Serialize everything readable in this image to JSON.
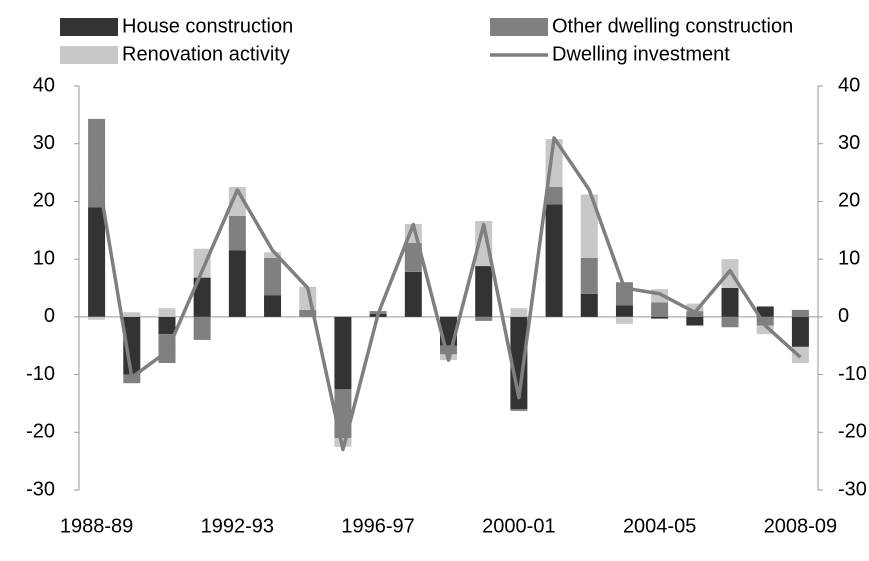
{
  "chart_data": {
    "type": "bar",
    "stacked": true,
    "categories": [
      "1988-89",
      null,
      null,
      null,
      "1992-93",
      null,
      null,
      null,
      "1996-97",
      null,
      null,
      null,
      "2000-01",
      null,
      null,
      null,
      "2004-05",
      null,
      null,
      null,
      "2008-09"
    ],
    "series": [
      {
        "name": "House construction",
        "color": "#333333",
        "values": [
          19,
          -10,
          -3,
          6.8,
          11.5,
          3.7,
          0,
          -12.5,
          0.5,
          7.8,
          -5,
          8.8,
          -16,
          19.5,
          4,
          2,
          -0.3,
          -1.5,
          5,
          1.8,
          -5.2
        ]
      },
      {
        "name": "Other dwelling construction",
        "color": "#808080",
        "values": [
          15.3,
          -1.5,
          -5,
          -4,
          6,
          6.5,
          1.2,
          -8.5,
          0.5,
          5,
          -1.5,
          -0.7,
          -0.3,
          3,
          6.2,
          4,
          2.5,
          1,
          -1.8,
          -1.5,
          1.2
        ]
      },
      {
        "name": "Renovation activity",
        "color": "#c8c8c8",
        "values": [
          -0.5,
          0.8,
          1.5,
          5,
          5,
          1,
          4,
          -1.5,
          0,
          3.3,
          -1,
          7.8,
          1.5,
          8.3,
          11,
          -1.2,
          2.3,
          1.3,
          5,
          -1.5,
          -2.8
        ]
      },
      {
        "name": "Dwelling investment",
        "color": "#7f7f7f",
        "type": "line",
        "axis": "y2",
        "values": [
          26,
          -10.5,
          -6,
          8,
          22,
          11.5,
          5,
          -23,
          0.5,
          16,
          -7.5,
          16,
          -14,
          31,
          22,
          5,
          4,
          0.8,
          8,
          -1.5,
          -7
        ]
      }
    ],
    "ylim": [
      -30,
      40
    ],
    "yticks": [
      -30,
      -20,
      -10,
      0,
      10,
      20,
      30,
      40
    ],
    "y2lim": [
      -30,
      40
    ],
    "y2ticks": [
      -30,
      -20,
      -10,
      0,
      10,
      20,
      30,
      40
    ]
  }
}
